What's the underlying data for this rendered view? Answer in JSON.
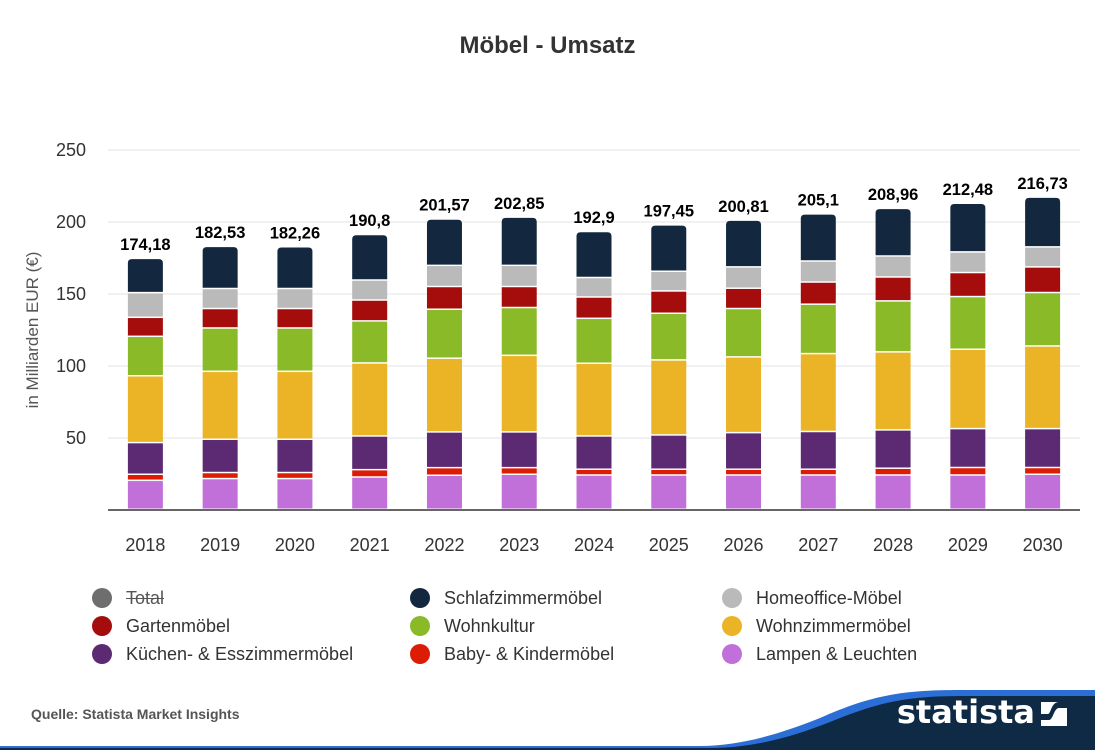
{
  "title": "Möbel - Umsatz",
  "source": "Quelle: Statista Market Insights",
  "brand": "statista",
  "chart_data": {
    "type": "bar",
    "stacked": true,
    "title": "Möbel - Umsatz",
    "xlabel": "",
    "ylabel": "in Milliarden EUR (€)",
    "ylim": [
      0,
      250
    ],
    "yticks": [
      50,
      100,
      150,
      200,
      250
    ],
    "grid": true,
    "legend_position": "bottom",
    "categories": [
      "2018",
      "2019",
      "2020",
      "2021",
      "2022",
      "2023",
      "2024",
      "2025",
      "2026",
      "2027",
      "2028",
      "2029",
      "2030"
    ],
    "totals": [
      174.18,
      182.53,
      182.26,
      190.8,
      201.57,
      202.85,
      192.9,
      197.45,
      200.81,
      205.1,
      208.96,
      212.48,
      216.73
    ],
    "total_labels": [
      "174,18",
      "182,53",
      "182,26",
      "190,8",
      "201,57",
      "202,85",
      "192,9",
      "197,45",
      "200,81",
      "205,1",
      "208,96",
      "212,48",
      "216,73"
    ],
    "series": [
      {
        "name": "Lampen & Leuchten",
        "color": "#c270d9",
        "values": [
          20.1,
          21.3,
          21.3,
          22.4,
          23.6,
          24.3,
          23.8,
          23.8,
          23.8,
          23.8,
          23.8,
          23.8,
          24.3
        ]
      },
      {
        "name": "Baby- & Kindermöbel",
        "color": "#dc1c05",
        "values": [
          4.2,
          4.2,
          4.2,
          5.1,
          5.3,
          4.6,
          4.0,
          4.0,
          4.0,
          4.0,
          4.7,
          5.2,
          4.7
        ]
      },
      {
        "name": "Küchen- & Esszimmermöbel",
        "color": "#5b2a72",
        "values": [
          22.0,
          23.1,
          23.1,
          23.4,
          24.8,
          24.8,
          23.1,
          23.8,
          25.4,
          26.2,
          26.6,
          27.0,
          27.0
        ]
      },
      {
        "name": "Wohnzimmermöbel",
        "color": "#ebb426",
        "values": [
          46.4,
          47.2,
          47.2,
          50.7,
          51.2,
          53.2,
          50.5,
          52.1,
          52.6,
          54.1,
          54.2,
          55.1,
          57.4
        ]
      },
      {
        "name": "Wohnkultur",
        "color": "#8aba27",
        "values": [
          27.4,
          30.1,
          30.1,
          29.2,
          34.0,
          33.2,
          31.2,
          32.4,
          33.6,
          34.3,
          35.4,
          36.6,
          37.1
        ]
      },
      {
        "name": "Gartenmöbel",
        "color": "#a50d0d",
        "values": [
          13.2,
          13.5,
          13.5,
          14.5,
          15.8,
          14.6,
          14.8,
          15.5,
          14.1,
          15.4,
          16.6,
          16.7,
          17.8
        ]
      },
      {
        "name": "Homeoffice-Möbel",
        "color": "#bababa",
        "values": [
          17.1,
          13.9,
          13.9,
          13.9,
          14.7,
          14.7,
          13.5,
          13.7,
          14.8,
          14.6,
          14.6,
          14.3,
          13.9
        ]
      },
      {
        "name": "Schlafzimmermöbel",
        "color": "#13283f",
        "values": [
          23.78,
          29.23,
          28.96,
          31.6,
          32.17,
          33.45,
          32.0,
          32.15,
          32.51,
          32.7,
          33.06,
          33.78,
          34.53
        ]
      }
    ],
    "legend": [
      {
        "name": "Total",
        "color": "#6e6e6e",
        "hidden": true
      },
      {
        "name": "Schlafzimmermöbel",
        "color": "#13283f",
        "hidden": false
      },
      {
        "name": "Homeoffice-Möbel",
        "color": "#bababa",
        "hidden": false
      },
      {
        "name": "Gartenmöbel",
        "color": "#a50d0d",
        "hidden": false
      },
      {
        "name": "Wohnkultur",
        "color": "#8aba27",
        "hidden": false
      },
      {
        "name": "Wohnzimmermöbel",
        "color": "#ebb426",
        "hidden": false
      },
      {
        "name": "Küchen- & Esszimmermöbel",
        "color": "#5b2a72",
        "hidden": false
      },
      {
        "name": "Baby- & Kindermöbel",
        "color": "#dc1c05",
        "hidden": false
      },
      {
        "name": "Lampen & Leuchten",
        "color": "#c270d9",
        "hidden": false
      }
    ]
  },
  "colors": {
    "footer_dark": "#0f2a44",
    "footer_blue": "#2b6fd6"
  }
}
